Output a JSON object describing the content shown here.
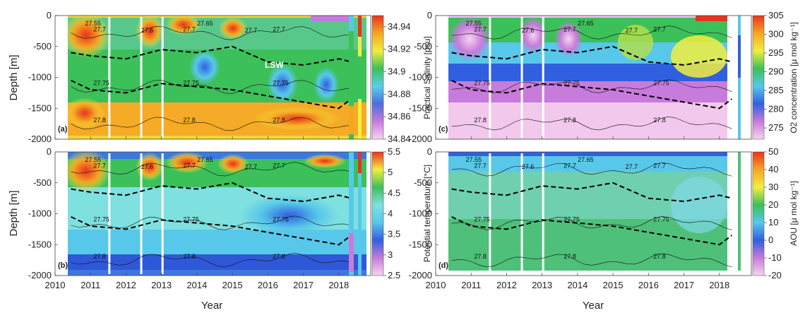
{
  "chart_data": [
    {
      "panel": "a",
      "type": "heatmap",
      "variable": "salinity",
      "colorbar_label": "Practical Salinity [psu]",
      "clim": [
        34.84,
        34.95
      ],
      "colorbar_ticks": [
        "34.94",
        "34.92",
        "34.9",
        "34.88",
        "34.86",
        "34.84"
      ],
      "colormap": [
        "#f6d4ee",
        "#c77bdb",
        "#4a6fe0",
        "#58d0e8",
        "#3cc05a",
        "#f2ee3e",
        "#f5a623",
        "#e8331e"
      ],
      "annotation": "LSW",
      "isopycnals": [
        "27.55",
        "27.6",
        "27.65",
        "27.7",
        "27.75",
        "27.8"
      ]
    },
    {
      "panel": "b",
      "type": "heatmap",
      "variable": "potential temperature",
      "colorbar_label": "Potential temperature [°C]",
      "clim": [
        2.5,
        5.5
      ],
      "colorbar_ticks": [
        "5.5",
        "5",
        "4.5",
        "4",
        "3.5",
        "3",
        "2.5"
      ],
      "colormap": [
        "#f6d4ee",
        "#c77bdb",
        "#3060e0",
        "#58c8ea",
        "#7fe0e0",
        "#3cc05a",
        "#f2ee3e",
        "#e8331e"
      ],
      "isopycnals": [
        "27.55",
        "27.6",
        "27.65",
        "27.7",
        "27.75",
        "27.8"
      ]
    },
    {
      "panel": "c",
      "type": "heatmap",
      "variable": "oxygen",
      "colorbar_label": "O2 concentration [μ mol kg⁻¹]",
      "clim": [
        272,
        305
      ],
      "colorbar_ticks": [
        "305",
        "300",
        "295",
        "290",
        "285",
        "280",
        "275"
      ],
      "colormap": [
        "#f6d4ee",
        "#c77bdb",
        "#3060e0",
        "#58c8ea",
        "#3cc05a",
        "#f2ee3e",
        "#f5a623",
        "#e8331e"
      ],
      "isopycnals": [
        "27.55",
        "27.6",
        "27.65",
        "27.7",
        "27.75",
        "27.8"
      ]
    },
    {
      "panel": "d",
      "type": "heatmap",
      "variable": "AOU",
      "colorbar_label": "AOU [μ mol kg⁻¹]",
      "clim": [
        -20,
        50
      ],
      "colorbar_ticks": [
        "50",
        "40",
        "30",
        "20",
        "10",
        "0",
        "-10",
        "-20"
      ],
      "colormap": [
        "#f6d4ee",
        "#c77bdb",
        "#3060e0",
        "#58c8ea",
        "#3cc05a",
        "#f2ee3e",
        "#f5a623",
        "#e8331e"
      ],
      "isopycnals": [
        "27.55",
        "27.6",
        "27.65",
        "27.7",
        "27.75",
        "27.8"
      ]
    }
  ],
  "axes": {
    "xlabel": "Year",
    "ylabel": "Depth [m]",
    "xlim": [
      2010,
      2018.9
    ],
    "ylim": [
      -2000,
      0
    ],
    "xticks": [
      "2010",
      "2011",
      "2012",
      "2013",
      "2014",
      "2015",
      "2016",
      "2017",
      "2018"
    ],
    "yticks": [
      "0",
      "-500",
      "-1000",
      "-1500",
      "-2000"
    ]
  },
  "panel_labels": [
    "(a)",
    "(b)",
    "(c)",
    "(d)"
  ],
  "data_gaps": [
    [
      2011.5,
      2011.56
    ],
    [
      2012.4,
      2012.46
    ],
    [
      2013.0,
      2013.06
    ]
  ],
  "isopycnal_depths": {
    "27.7": -280,
    "27.75": -1150,
    "27.8": -1750
  },
  "lsw_bounds": {
    "upper": [
      [
        2010.45,
        -600
      ],
      [
        2011.0,
        -650
      ],
      [
        2012.0,
        -700
      ],
      [
        2013.0,
        -550
      ],
      [
        2014.0,
        -600
      ],
      [
        2015.0,
        -500
      ],
      [
        2016.0,
        -750
      ],
      [
        2017.0,
        -800
      ],
      [
        2018.0,
        -700
      ],
      [
        2018.35,
        -750
      ]
    ],
    "lower": [
      [
        2010.45,
        -1050
      ],
      [
        2011.0,
        -1200
      ],
      [
        2012.0,
        -1250
      ],
      [
        2013.0,
        -1100
      ],
      [
        2014.0,
        -1150
      ],
      [
        2015.0,
        -1200
      ],
      [
        2016.0,
        -1300
      ],
      [
        2017.0,
        -1400
      ],
      [
        2018.0,
        -1500
      ],
      [
        2018.35,
        -1350
      ]
    ]
  }
}
